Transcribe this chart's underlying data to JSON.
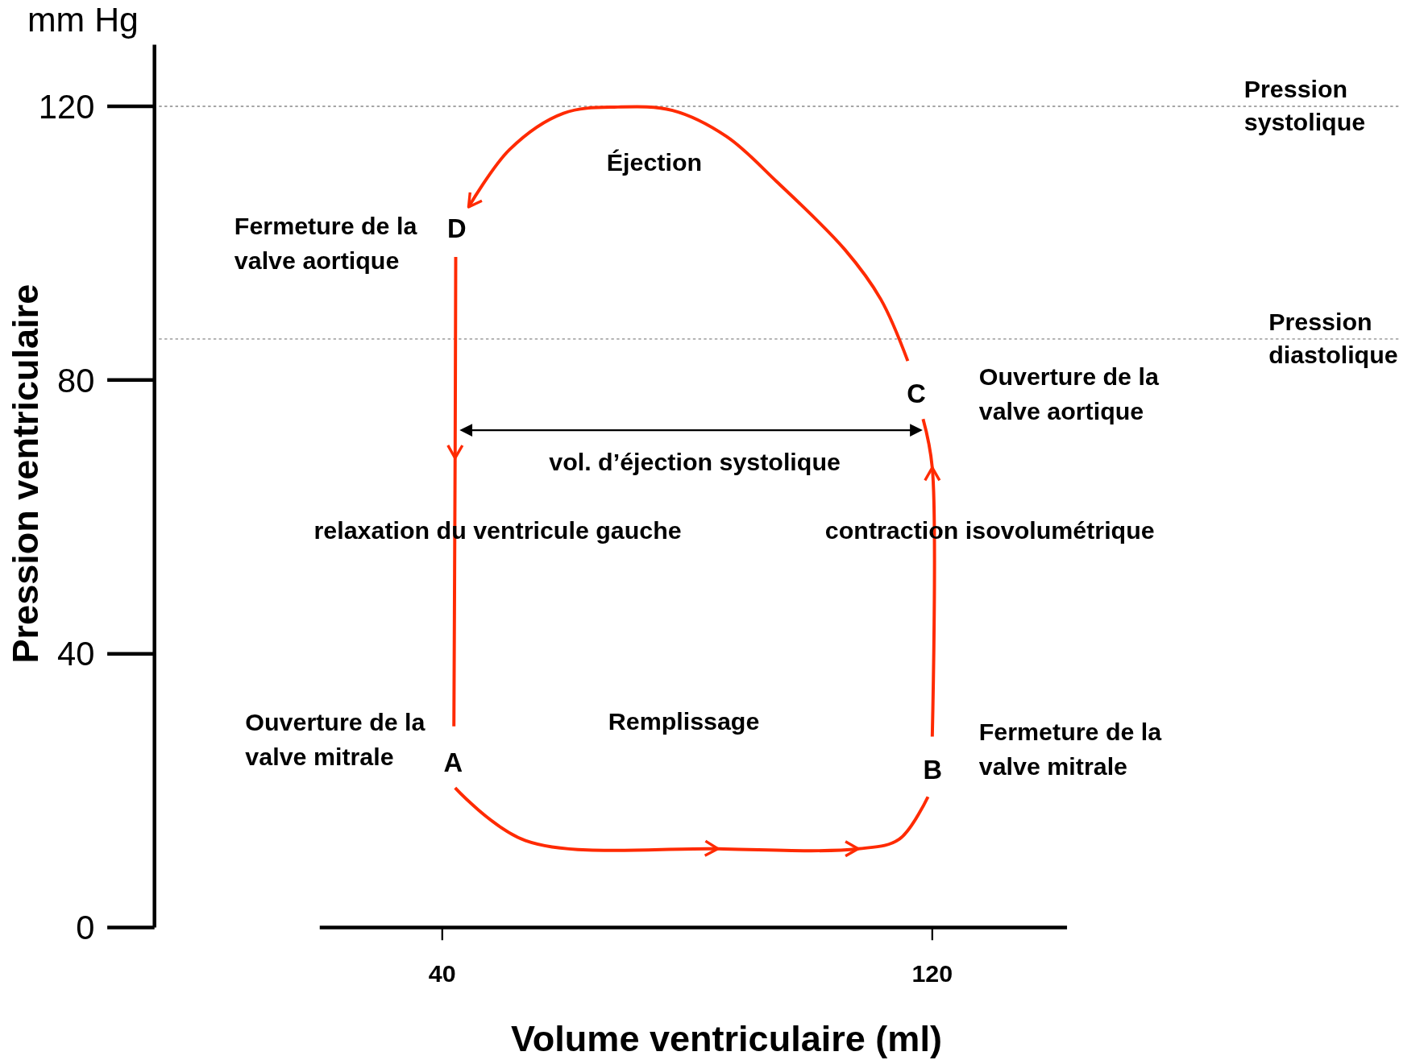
{
  "chart_data": {
    "type": "line",
    "xlabel": "Volume ventriculaire (ml)",
    "ylabel": "Pression ventriculaire",
    "xlim": [
      20,
      142
    ],
    "xticks": [
      40,
      120
    ],
    "ylim": [
      0,
      129
    ],
    "yticks": [
      0,
      40,
      80,
      120
    ],
    "grid": false,
    "marker": "none",
    "line_style": "solid",
    "x": [
      42.1,
      53.6,
      85,
      107.9,
      114.6,
      119.3,
      119.6,
      120,
      120,
      118.5,
      117.3,
      116,
      111.6,
      105.7,
      94.6,
      86.4,
      77.6,
      68.7,
      59.8,
      51,
      44.3,
      43.2,
      42.2,
      42.1,
      41.9
    ],
    "series": [
      {
        "color": "#ff2a00",
        "values": [
          20.4,
          12.7,
          11.5,
          11.5,
          12.9,
          19.1,
          null,
          27.9,
          67.2,
          74.3,
          null,
          82.8,
          91.8,
          99.1,
          109,
          115.6,
          119.4,
          119.9,
          119,
          113.7,
          105.3,
          null,
          98,
          68.6,
          29.4
        ]
      }
    ],
    "ref_lines": [
      {
        "axis": "y",
        "value": 120,
        "label": "Pression systolique",
        "color": "#888888",
        "line_style": "dotted"
      },
      {
        "axis": "y",
        "value": 86,
        "label": "Pression diastolique",
        "color": "#888888",
        "line_style": "dotted"
      }
    ],
    "annotations": [
      "mm Hg",
      "Éjection",
      "Fermeture de la\nvalve aortique",
      "Ouverture de la\nvalve aortique",
      "vol. d’éjection systolique",
      "relaxation du ventricule gauche",
      "contraction isovolumétrique",
      "Ouverture de la\nvalve mitrale",
      "Remplissage",
      "Fermeture de la\nvalve mitrale",
      "A",
      "B",
      "C",
      "D"
    ]
  }
}
